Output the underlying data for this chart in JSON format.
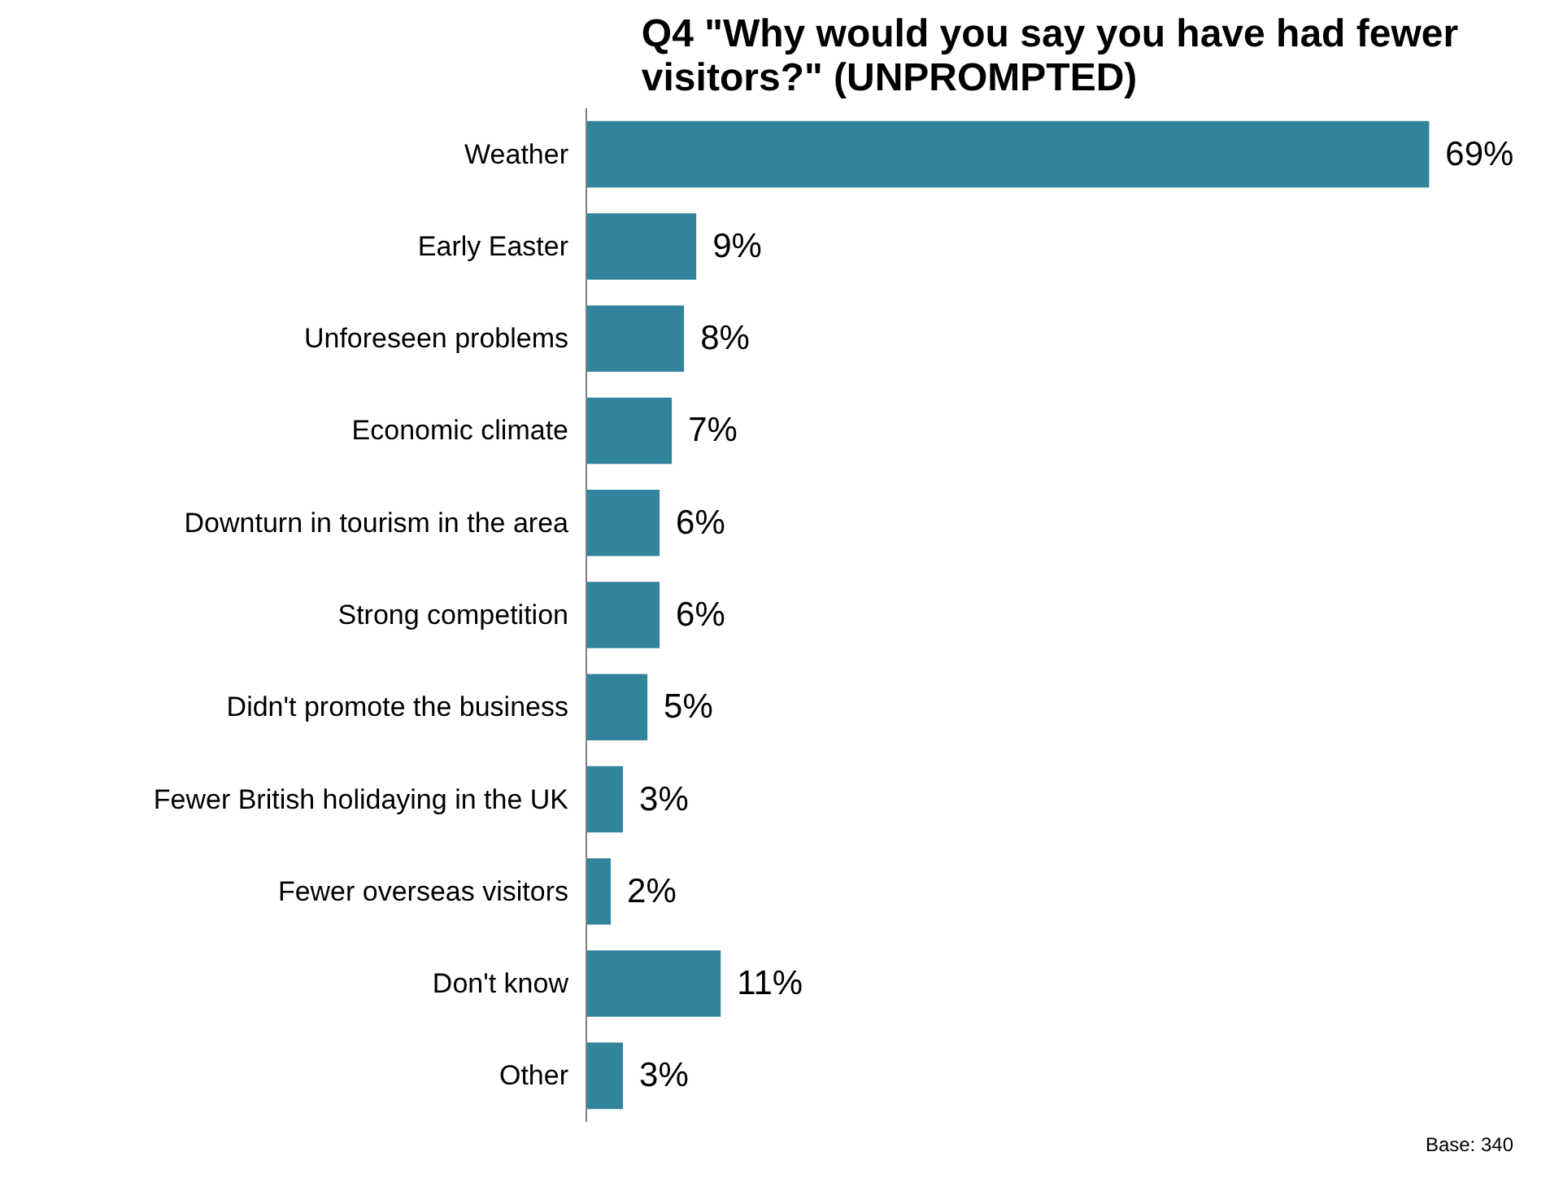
{
  "chart_data": {
    "type": "bar",
    "orientation": "horizontal",
    "title": "Q4 \"Why would you say you have had fewer\nvisitors?\" (UNPROMPTED)",
    "categories": [
      "Weather",
      "Early Easter",
      "Unforeseen problems",
      "Economic climate",
      "Downturn in tourism in the area",
      "Strong competition",
      "Didn't promote the business",
      "Fewer British holidaying in the UK",
      "Fewer overseas visitors",
      "Don't know",
      "Other"
    ],
    "values": [
      69,
      9,
      8,
      7,
      6,
      6,
      5,
      3,
      2,
      11,
      3
    ],
    "value_labels": [
      "69%",
      "9%",
      "8%",
      "7%",
      "6%",
      "6%",
      "5%",
      "3%",
      "2%",
      "11%",
      "3%"
    ],
    "color": "#31849b",
    "grid": false,
    "annotations": [
      "Base: 340"
    ]
  }
}
